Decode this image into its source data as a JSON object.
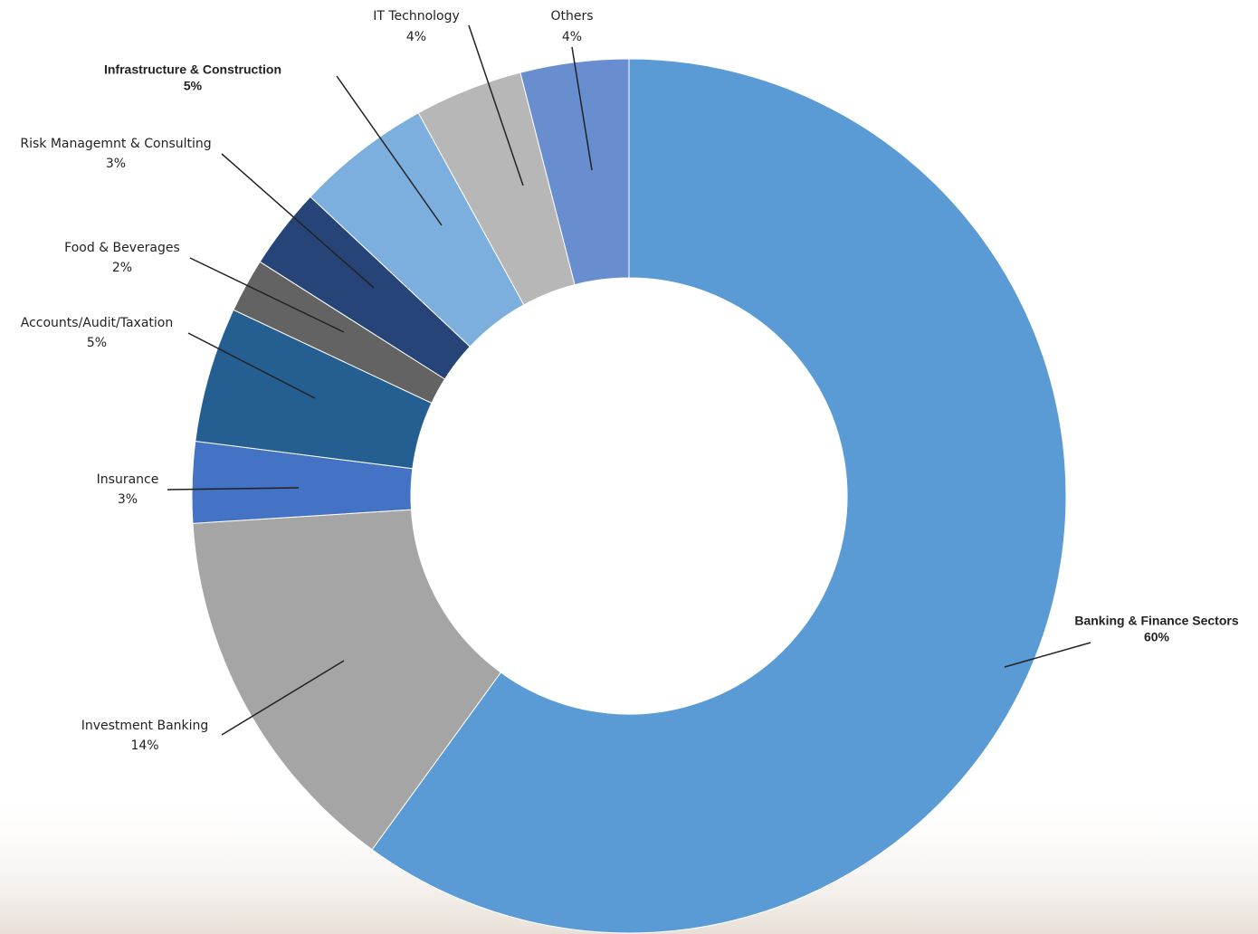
{
  "chart_data": {
    "type": "donut",
    "categories": [
      "Banking & Finance Sectors",
      "Investment Banking",
      "Insurance",
      "Accounts/Audit/Taxation",
      "Food & Beverages",
      "Risk Managemnt & Consulting",
      "Infrastructure & Construction",
      "IT Technology",
      "Others"
    ],
    "values": [
      60,
      14,
      3,
      5,
      2,
      3,
      5,
      4,
      4
    ],
    "value_labels": [
      "60%",
      "14%",
      "3%",
      "5%",
      "2%",
      "3%",
      "5%",
      "4%",
      "4%"
    ],
    "colors": [
      "#5b9bd5",
      "#a5a5a5",
      "#4472c4",
      "#255e91",
      "#636363",
      "#264478",
      "#7cafdd",
      "#b7b7b7",
      "#698ed0"
    ]
  }
}
